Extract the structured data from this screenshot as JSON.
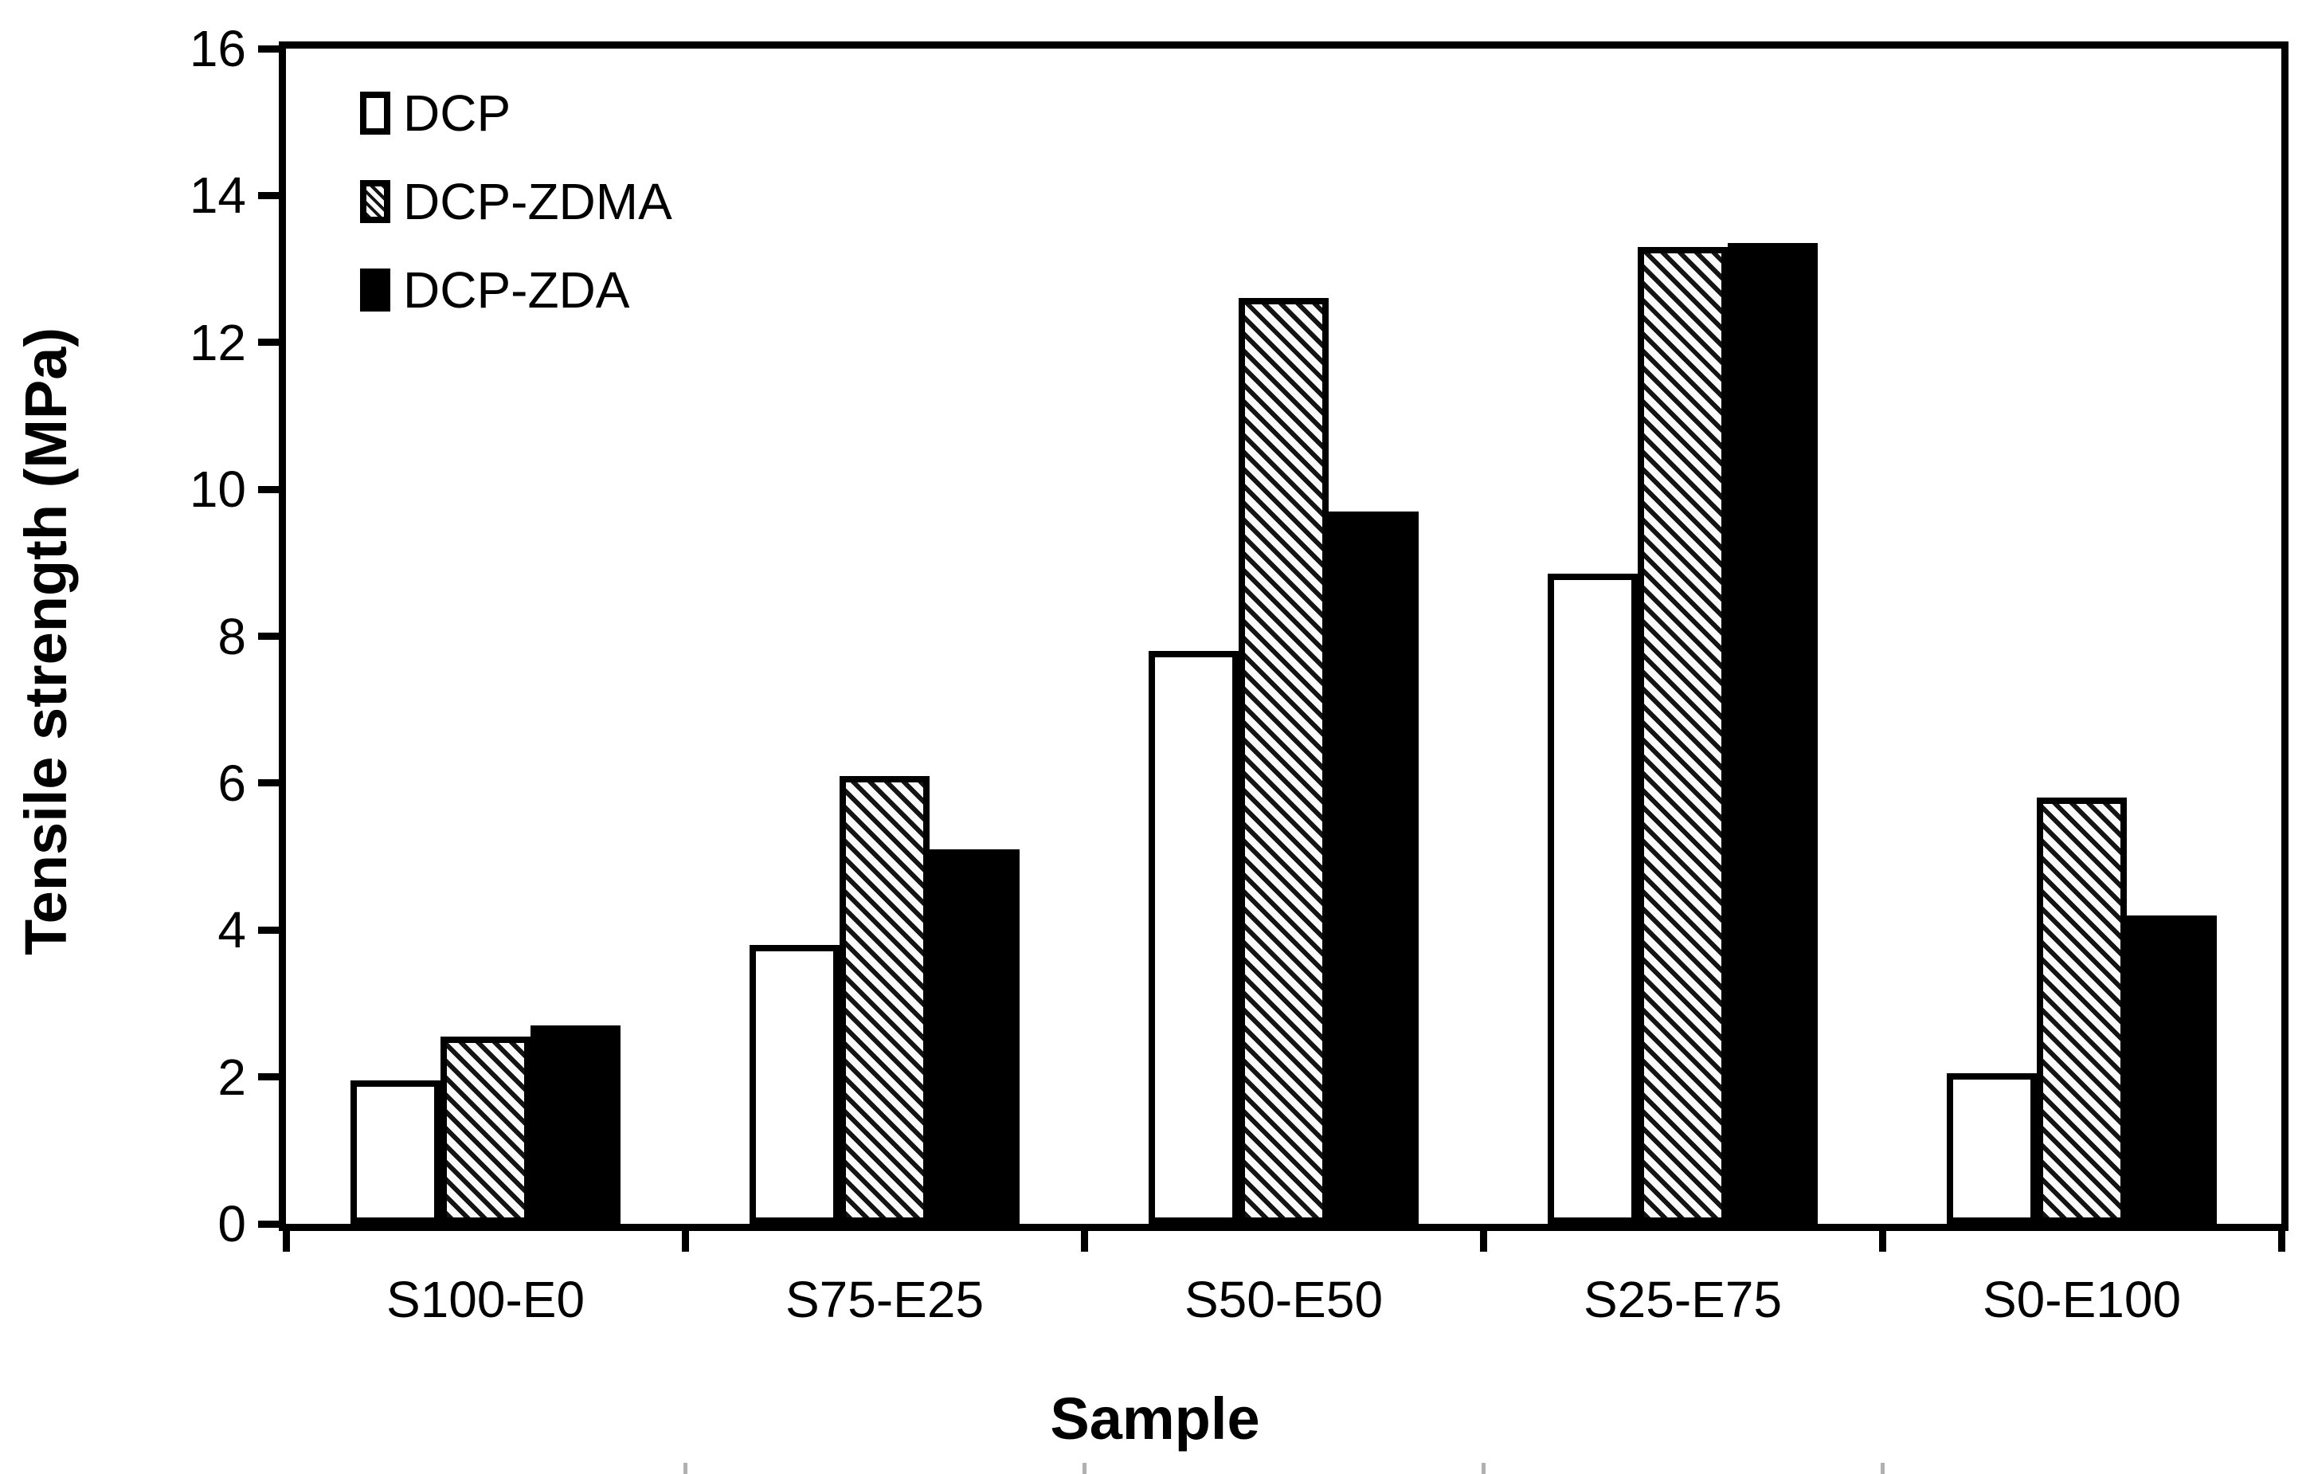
{
  "figure": {
    "background": "#ffffff",
    "text_color": "#000000",
    "y_axis_title": "Tensile strength (MPa)",
    "x_axis_title": "Sample"
  },
  "legend": {
    "position": "top-left-inside",
    "items": [
      {
        "label": "DCP",
        "swatch": "white-square-icon"
      },
      {
        "label": "DCP-ZDMA",
        "swatch": "hatched-square-icon"
      },
      {
        "label": "DCP-ZDA",
        "swatch": "black-square-icon"
      }
    ]
  },
  "chart_data": {
    "type": "bar",
    "title": "",
    "xlabel": "Sample",
    "ylabel": "Tensile strength (MPa)",
    "categories": [
      "S100-E0",
      "S75-E25",
      "S50-E50",
      "S25-E75",
      "S0-E100"
    ],
    "series": [
      {
        "name": "DCP",
        "fill": "white",
        "color": "#ffffff",
        "outline": "#000000",
        "values": [
          1.95,
          3.8,
          7.8,
          8.85,
          2.05
        ]
      },
      {
        "name": "DCP-ZDMA",
        "fill": "hatch",
        "color": "diagonal-hatch",
        "outline": "#000000",
        "values": [
          2.55,
          6.1,
          12.6,
          13.3,
          5.8
        ]
      },
      {
        "name": "DCP-ZDA",
        "fill": "black",
        "color": "#000000",
        "outline": "#000000",
        "values": [
          2.7,
          5.1,
          9.7,
          13.35,
          4.2
        ]
      }
    ],
    "ylim": [
      0,
      16
    ],
    "ytick_step": 2,
    "yticks": [
      0,
      2,
      4,
      6,
      8,
      10,
      12,
      14,
      16
    ],
    "grid": false,
    "legend_position": "top-left-inside",
    "axis_color": "#000000"
  }
}
